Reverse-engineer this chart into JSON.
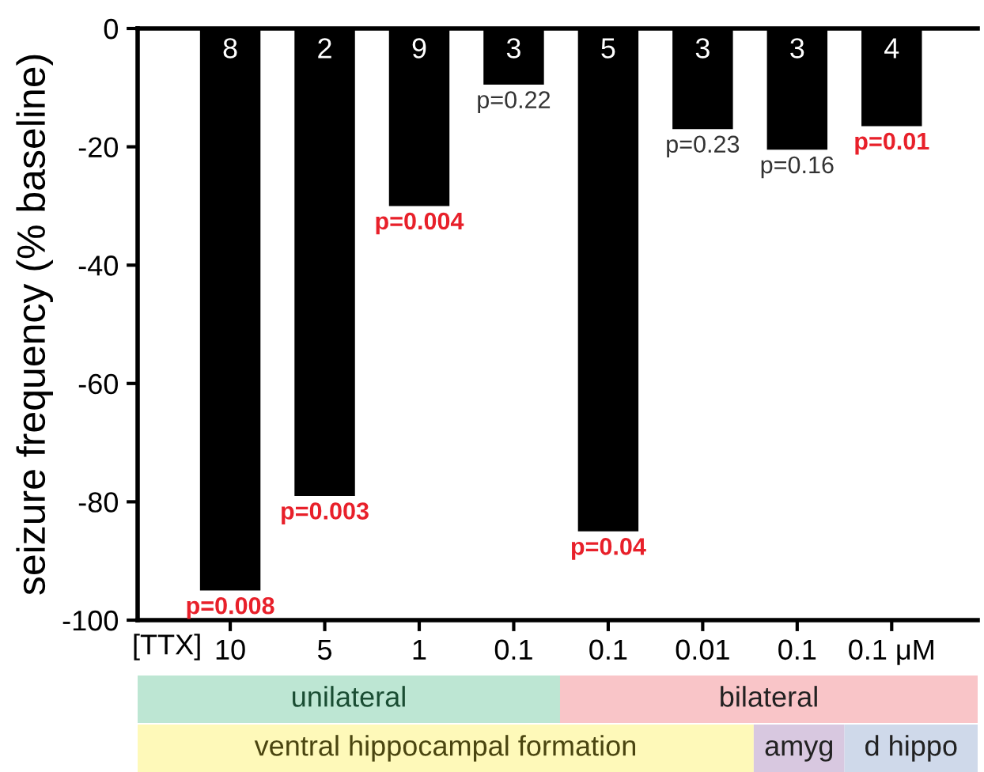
{
  "chart_data": {
    "type": "bar",
    "ylabel": "seizure frequency (% baseline)",
    "categories": [
      "10",
      "5",
      "1",
      "0.1",
      "0.1",
      "0.01",
      "0.1",
      "0.1 μM"
    ],
    "values": [
      -95,
      -79,
      -30,
      -9.5,
      -85,
      -17,
      -20.5,
      -16.5
    ],
    "color": "#000000",
    "ylim": [
      -100,
      0
    ],
    "yticks": [
      0,
      -20,
      -40,
      -60,
      -80,
      -100
    ],
    "grid": false,
    "legend": false,
    "annotations": [
      "8",
      "2",
      "9",
      "3",
      "5",
      "3",
      "3",
      "4",
      {
        "text": "p=0.008",
        "y": -95
      },
      {
        "text": "p=0.003",
        "y": -79
      },
      {
        "text": "p=0.004",
        "y": -30
      },
      {
        "text": "p=0.22",
        "y": -9.5
      },
      {
        "text": "p=0.04",
        "y": -85
      },
      {
        "text": "p=0.23",
        "y": -17
      },
      {
        "text": "p=0.16",
        "y": -20.5
      },
      {
        "text": "p=0.01",
        "y": -16.5
      },
      "[TTX]",
      "unilateral",
      "bilateral",
      "ventral hippocampal formation",
      "amyg",
      "d hippo"
    ]
  }
}
